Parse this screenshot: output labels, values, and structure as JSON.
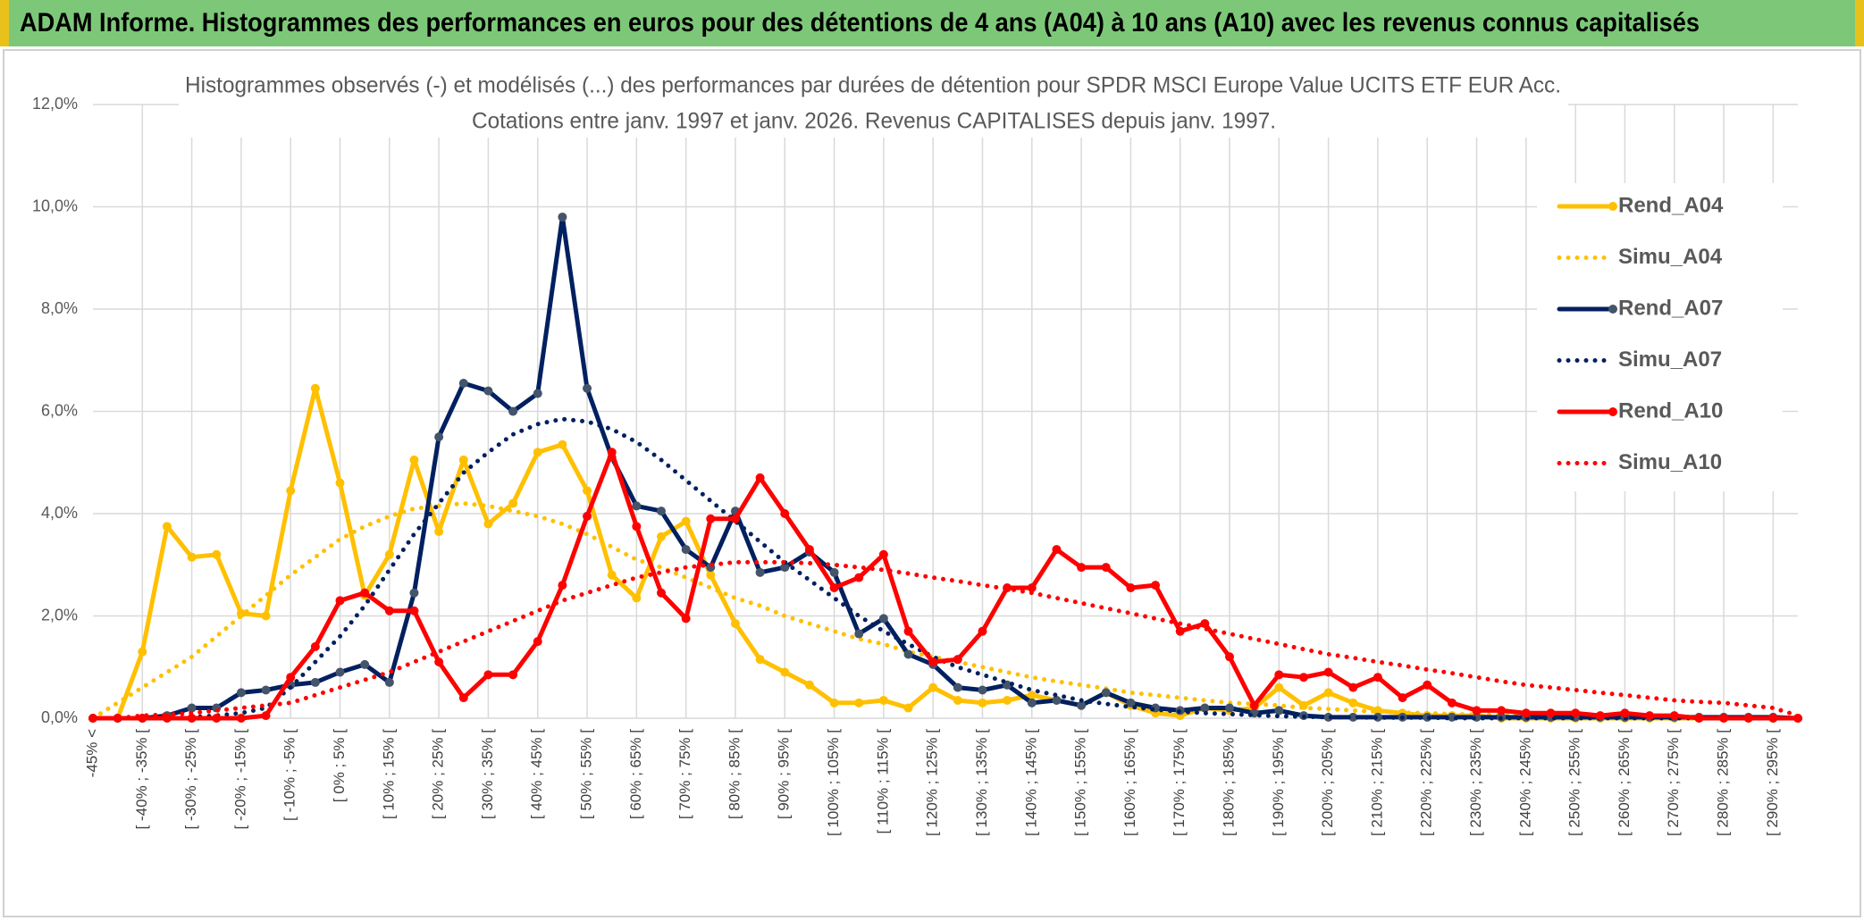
{
  "header": {
    "title": "ADAM Informe. Histogrammes des performances en euros pour des détentions de 4 ans (A04) à 10 ans (A10) avec les revenus connus capitalisés"
  },
  "chart_data": {
    "type": "line",
    "title": "Histogrammes observés (-) et modélisés (...) des performances par durées de détention pour SPDR MSCI Europe Value UCITS ETF EUR Acc.",
    "subtitle": "Cotations entre janv. 1997 et janv. 2026. Revenus CAPITALISES depuis janv. 1997.",
    "categories": [
      "-45% <",
      null,
      "[ -40% ; -35% [",
      null,
      "[ -30% ; -25% [",
      null,
      "[ -20% ; -15% [",
      null,
      "[ -10% ; -5% [",
      null,
      "[ 0% ; 5% [",
      null,
      "[ 10% ; 15% [",
      null,
      "[ 20% ; 25% [",
      null,
      "[ 30% ; 35% [",
      null,
      "[ 40% ; 45% [",
      null,
      "[ 50% ; 55% [",
      null,
      "[ 60% ; 65% [",
      null,
      "[ 70% ; 75% [",
      null,
      "[ 80% ; 85% [",
      null,
      "[ 90% ; 95% [",
      null,
      "[ 100% ; 105% [",
      null,
      "[ 110% ; 115% [",
      null,
      "[ 120% ; 125% [",
      null,
      "[ 130% ; 135% [",
      null,
      "[ 140% ; 145% [",
      null,
      "[ 150% ; 155% [",
      null,
      "[ 160% ; 165% [",
      null,
      "[ 170% ; 175% [",
      null,
      "[ 180% ; 185% [",
      null,
      "[ 190% ; 195% [",
      null,
      "[ 200% ; 205% [",
      null,
      "[ 210% ; 215% [",
      null,
      "[ 220% ; 225% [",
      null,
      "[ 230% ; 235% [",
      null,
      "[ 240% ; 245% [",
      null,
      "[ 250% ; 255% [",
      null,
      "[ 260% ; 265% [",
      null,
      "[ 270% ; 275% [",
      null,
      "[ 280% ; 285% [",
      null,
      "[ 290% ; 295% [",
      null
    ],
    "series": [
      {
        "name": "Rend_A04",
        "color": "#ffc000",
        "line_style": "solid",
        "values": [
          0,
          0,
          1.3,
          3.75,
          3.15,
          3.2,
          2.05,
          2.0,
          4.45,
          6.45,
          4.6,
          2.4,
          3.2,
          5.05,
          3.65,
          5.05,
          3.8,
          4.2,
          5.2,
          5.35,
          4.45,
          2.8,
          2.35,
          3.55,
          3.85,
          2.8,
          1.85,
          1.15,
          0.9,
          0.65,
          0.3,
          0.3,
          0.35,
          0.2,
          0.6,
          0.35,
          0.3,
          0.35,
          0.45,
          0.35,
          0.25,
          0.5,
          0.25,
          0.1,
          0.05,
          0.2,
          0.15,
          0.2,
          0.6,
          0.25,
          0.5,
          0.3,
          0.15,
          0.1,
          0.05,
          0.05,
          0.05,
          0,
          0,
          0,
          0,
          0,
          0,
          0,
          0,
          0,
          0,
          0,
          0,
          0
        ]
      },
      {
        "name": "Simu_A04",
        "color": "#ffc000",
        "line_style": "dotted",
        "values": [
          0,
          0.3,
          0.6,
          0.9,
          1.2,
          1.6,
          2.0,
          2.4,
          2.8,
          3.15,
          3.5,
          3.75,
          3.95,
          4.1,
          4.15,
          4.2,
          4.15,
          4.05,
          3.95,
          3.8,
          3.6,
          3.35,
          3.1,
          2.95,
          2.75,
          2.55,
          2.35,
          2.2,
          2.0,
          1.85,
          1.7,
          1.55,
          1.45,
          1.3,
          1.2,
          1.1,
          1.0,
          0.9,
          0.8,
          0.72,
          0.65,
          0.58,
          0.5,
          0.45,
          0.4,
          0.35,
          0.3,
          0.28,
          0.25,
          0.2,
          0.18,
          0.15,
          0.13,
          0.11,
          0.1,
          0.08,
          0.07,
          0.06,
          0.05,
          0.04,
          0.03,
          0.03,
          0.02,
          0.02,
          0.01,
          0.01,
          0.01,
          0,
          0,
          0
        ]
      },
      {
        "name": "Rend_A07",
        "color": "#002060",
        "line_style": "solid",
        "values": [
          0,
          0,
          0,
          0.05,
          0.2,
          0.2,
          0.5,
          0.55,
          0.65,
          0.7,
          0.9,
          1.05,
          0.7,
          2.45,
          5.5,
          6.55,
          6.4,
          6.0,
          6.35,
          9.8,
          6.45,
          5.1,
          4.15,
          4.05,
          3.3,
          2.95,
          4.05,
          2.85,
          2.95,
          3.25,
          2.85,
          1.65,
          1.95,
          1.25,
          1.05,
          0.6,
          0.55,
          0.65,
          0.3,
          0.35,
          0.25,
          0.5,
          0.3,
          0.2,
          0.15,
          0.2,
          0.2,
          0.1,
          0.15,
          0.05,
          0.02,
          0.02,
          0.02,
          0.02,
          0.02,
          0.02,
          0.02,
          0.02,
          0.02,
          0.02,
          0.02,
          0.02,
          0.02,
          0.02,
          0.02,
          0.02,
          0.02,
          0.02,
          0.02,
          0
        ]
      },
      {
        "name": "Simu_A07",
        "color": "#002060",
        "line_style": "dotted",
        "values": [
          0,
          0,
          0,
          0,
          0.02,
          0.05,
          0.1,
          0.2,
          0.6,
          1.1,
          1.6,
          2.2,
          2.9,
          3.6,
          4.2,
          4.8,
          5.2,
          5.55,
          5.75,
          5.85,
          5.8,
          5.65,
          5.4,
          5.05,
          4.65,
          4.25,
          3.85,
          3.45,
          3.05,
          2.7,
          2.35,
          2.0,
          1.7,
          1.45,
          1.2,
          1.0,
          0.85,
          0.7,
          0.55,
          0.45,
          0.35,
          0.28,
          0.22,
          0.17,
          0.13,
          0.1,
          0.08,
          0.06,
          0.04,
          0.03,
          0.02,
          0.02,
          0.01,
          0.01,
          0.01,
          0,
          0,
          0,
          0,
          0,
          0,
          0,
          0,
          0,
          0,
          0,
          0,
          0,
          0,
          0
        ]
      },
      {
        "name": "Rend_A10",
        "color": "#ff0000",
        "line_style": "solid",
        "values": [
          0,
          0,
          0,
          0,
          0,
          0,
          0,
          0.05,
          0.8,
          1.4,
          2.3,
          2.45,
          2.1,
          2.1,
          1.1,
          0.4,
          0.85,
          0.85,
          1.5,
          2.6,
          3.95,
          5.2,
          3.75,
          2.45,
          1.95,
          3.9,
          3.9,
          4.7,
          4.0,
          3.3,
          2.55,
          2.75,
          3.2,
          1.7,
          1.1,
          1.15,
          1.7,
          2.55,
          2.55,
          3.3,
          2.95,
          2.95,
          2.55,
          2.6,
          1.7,
          1.85,
          1.2,
          0.25,
          0.85,
          0.8,
          0.9,
          0.6,
          0.8,
          0.4,
          0.65,
          0.3,
          0.15,
          0.15,
          0.1,
          0.1,
          0.1,
          0.05,
          0.1,
          0.05,
          0.05,
          0,
          0,
          0,
          0,
          0
        ]
      },
      {
        "name": "Simu_A10",
        "color": "#ff0000",
        "line_style": "dotted",
        "values": [
          0,
          0,
          0.05,
          0.07,
          0.1,
          0.15,
          0.2,
          0.25,
          0.3,
          0.45,
          0.6,
          0.75,
          0.9,
          1.1,
          1.3,
          1.5,
          1.7,
          1.9,
          2.1,
          2.3,
          2.45,
          2.6,
          2.75,
          2.85,
          2.95,
          3.0,
          3.05,
          3.05,
          3.05,
          3.03,
          3.0,
          2.95,
          2.9,
          2.83,
          2.75,
          2.68,
          2.6,
          2.53,
          2.45,
          2.35,
          2.25,
          2.15,
          2.05,
          1.95,
          1.85,
          1.75,
          1.65,
          1.55,
          1.45,
          1.35,
          1.25,
          1.18,
          1.1,
          1.03,
          0.95,
          0.88,
          0.8,
          0.72,
          0.65,
          0.6,
          0.55,
          0.5,
          0.45,
          0.4,
          0.35,
          0.32,
          0.3,
          0.25,
          0.2,
          0.05
        ]
      }
    ],
    "ylim": [
      0,
      12
    ],
    "yticks": [
      {
        "value": 0,
        "label": "0,0%"
      },
      {
        "value": 2,
        "label": "2,0%"
      },
      {
        "value": 4,
        "label": "4,0%"
      },
      {
        "value": 6,
        "label": "6,0%"
      },
      {
        "value": 8,
        "label": "8,0%"
      },
      {
        "value": 10,
        "label": "10,0%"
      },
      {
        "value": 12,
        "label": "12,0%"
      }
    ],
    "grid": true,
    "legend": "right"
  }
}
